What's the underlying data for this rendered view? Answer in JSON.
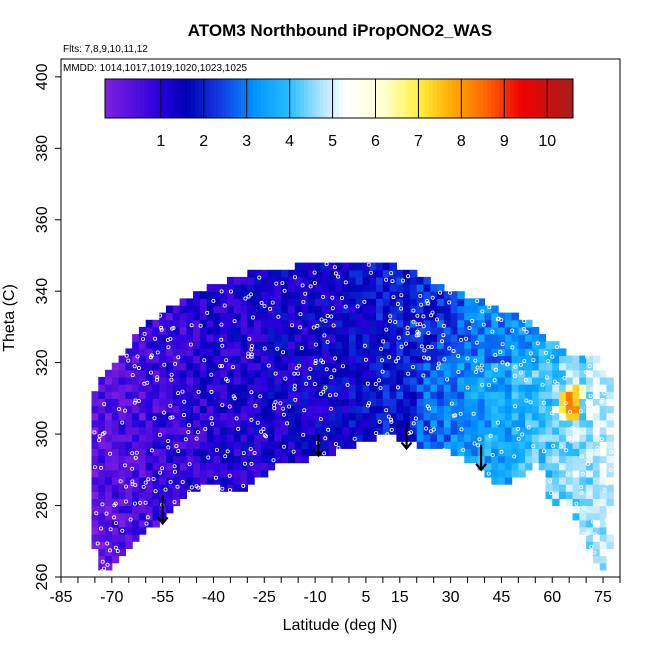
{
  "chart_data": {
    "type": "heatmap",
    "title": "ATOM3 Northbound iPropONO2_WAS",
    "flights_note": "Flts: 7,8,9,10,11,12",
    "mmdd_note": "MMDD: 1014,1017,1019,1020,1023,1025",
    "xlabel": "Latitude (deg N)",
    "ylabel": "Theta (C)",
    "xlim": [
      -85,
      80
    ],
    "ylim": [
      260,
      405
    ],
    "x_tick_labels": [
      "-85",
      "-70",
      "-55",
      "-40",
      "-25",
      "-10",
      "5",
      "15",
      "30",
      "45",
      "60",
      "75"
    ],
    "x_tick_values": [
      -85,
      -70,
      -55,
      -40,
      -25,
      -10,
      5,
      15,
      30,
      45,
      60,
      75
    ],
    "x_minor_step": 5,
    "y_tick_values": [
      260,
      280,
      300,
      320,
      340,
      360,
      380,
      400
    ],
    "y_tick_labels": [
      "260",
      "280",
      "300",
      "320",
      "340",
      "360",
      "380",
      "400"
    ],
    "colorbar": {
      "labels": [
        "1",
        "2",
        "3",
        "4",
        "5",
        "6",
        "7",
        "8",
        "9",
        "10"
      ],
      "values": [
        1,
        2,
        3,
        4,
        5,
        6,
        7,
        8,
        9,
        10
      ],
      "range": [
        -0.3,
        10.6
      ],
      "colors": [
        "#8a2be2",
        "#0000c8",
        "#1e90ff",
        "#00bfff",
        "#ffffff",
        "#ffff00",
        "#ffa500",
        "#ff0000",
        "#b22222"
      ]
    },
    "domain_top_boundary": [
      [
        -76,
        311
      ],
      [
        -74,
        313
      ],
      [
        -72,
        318
      ],
      [
        -68,
        320
      ],
      [
        -63,
        327
      ],
      [
        -58,
        332
      ],
      [
        -52,
        336
      ],
      [
        -45,
        340
      ],
      [
        -38,
        342
      ],
      [
        -30,
        345
      ],
      [
        -20,
        346
      ],
      [
        -10,
        348
      ],
      [
        0,
        348
      ],
      [
        8,
        348
      ],
      [
        15,
        347
      ],
      [
        22,
        344
      ],
      [
        30,
        340
      ],
      [
        38,
        338
      ],
      [
        45,
        335
      ],
      [
        52,
        332
      ],
      [
        58,
        327
      ],
      [
        65,
        323
      ],
      [
        70,
        322
      ],
      [
        74,
        321
      ],
      [
        77,
        318
      ],
      [
        78,
        310
      ],
      [
        79,
        300
      ]
    ],
    "domain_bottom_boundary": [
      [
        79,
        262
      ],
      [
        74,
        262
      ],
      [
        67,
        276
      ],
      [
        62,
        284
      ],
      [
        60,
        276
      ],
      [
        58,
        288
      ],
      [
        55,
        292
      ],
      [
        52,
        289
      ],
      [
        45,
        285
      ],
      [
        38,
        291
      ],
      [
        30,
        295
      ],
      [
        20,
        297
      ],
      [
        10,
        300
      ],
      [
        0,
        296
      ],
      [
        -12,
        293
      ],
      [
        -22,
        291
      ],
      [
        -30,
        285
      ],
      [
        -36,
        283
      ],
      [
        -40,
        287
      ],
      [
        -47,
        283
      ],
      [
        -55,
        276
      ],
      [
        -62,
        271
      ],
      [
        -68,
        265
      ],
      [
        -72,
        261
      ],
      [
        -74,
        262
      ],
      [
        -76,
        275
      ],
      [
        -77,
        290
      ]
    ],
    "arrows": [
      {
        "lat": -55,
        "theta_start": 283,
        "theta_end": 275
      },
      {
        "lat": -9,
        "theta_start": 300,
        "theta_end": 294
      },
      {
        "lat": 17,
        "theta_start": 303,
        "theta_end": 296
      },
      {
        "lat": 39,
        "theta_start": 297,
        "theta_end": 290
      }
    ],
    "hotspots": [
      {
        "lat": 65,
        "theta": 310,
        "value": 9
      },
      {
        "lat": 67,
        "theta": 312,
        "value": 8
      },
      {
        "lat": 63,
        "theta": 307,
        "value": 7
      },
      {
        "lat": 66,
        "theta": 307,
        "value": 9
      }
    ],
    "grid": false
  }
}
